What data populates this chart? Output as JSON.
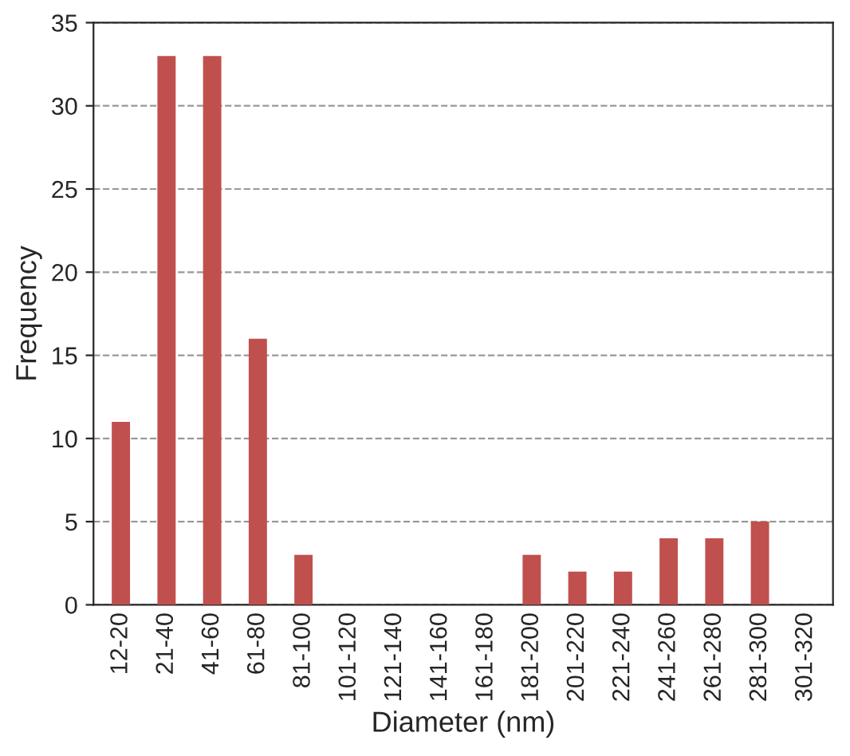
{
  "chart_data": {
    "type": "bar",
    "xlabel": "Diameter (nm)",
    "ylabel": "Frequency",
    "categories": [
      "12-20",
      "21-40",
      "41-60",
      "61-80",
      "81-100",
      "101-120",
      "121-140",
      "141-160",
      "161-180",
      "181-200",
      "201-220",
      "221-240",
      "241-260",
      "261-280",
      "281-300",
      "301-320"
    ],
    "values": [
      11,
      33,
      33,
      16,
      3,
      0,
      0,
      0,
      0,
      3,
      2,
      2,
      4,
      4,
      5,
      0
    ],
    "color": "#c0504d",
    "ylim": [
      0,
      35
    ],
    "yticks": [
      0,
      5,
      10,
      15,
      20,
      25,
      30,
      35
    ],
    "grid": "y",
    "legend": false
  }
}
